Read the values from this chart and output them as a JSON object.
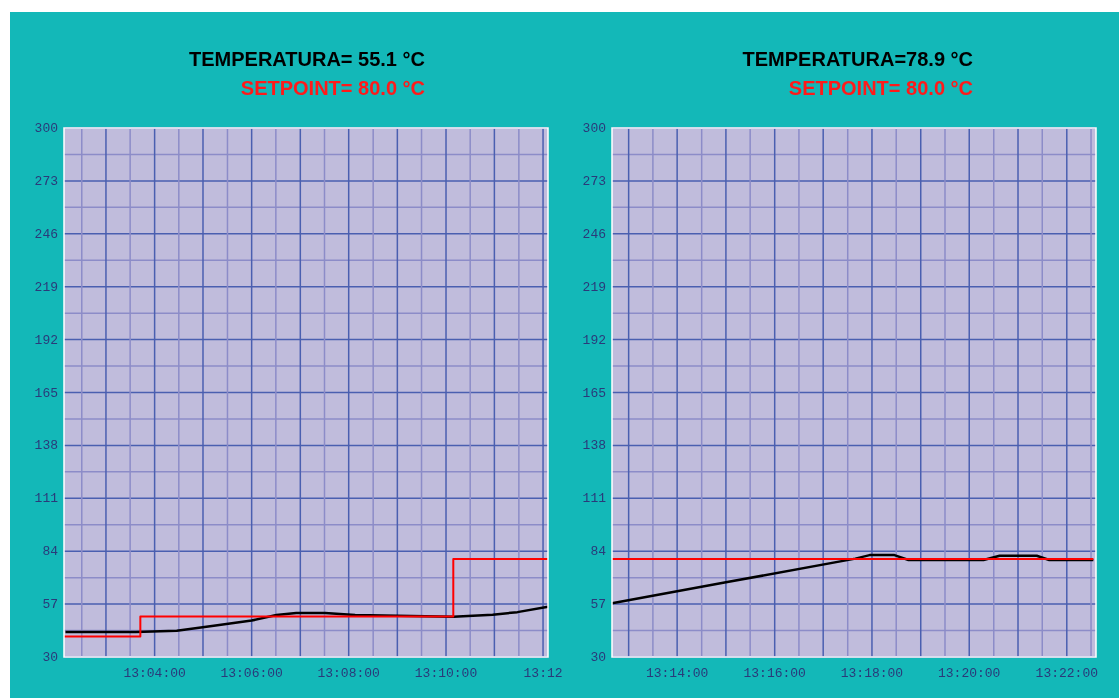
{
  "chart_data": [
    {
      "type": "line",
      "title": "TEMPERATURA= 55.1  °C",
      "subtitle": "SETPOINT= 80.0  °C",
      "xlim": [
        13.0356,
        13.2017
      ],
      "xticks": [
        {
          "value": 13.0417,
          "label": null
        },
        {
          "value": 13.05,
          "label": null
        },
        {
          "value": 13.0583,
          "label": null
        },
        {
          "value": 13.0667,
          "label": "13:04:00"
        },
        {
          "value": 13.075,
          "label": null
        },
        {
          "value": 13.0833,
          "label": null
        },
        {
          "value": 13.0917,
          "label": null
        },
        {
          "value": 13.1,
          "label": "13:06:00"
        },
        {
          "value": 13.1083,
          "label": null
        },
        {
          "value": 13.1167,
          "label": null
        },
        {
          "value": 13.125,
          "label": null
        },
        {
          "value": 13.1333,
          "label": "13:08:00"
        },
        {
          "value": 13.1417,
          "label": null
        },
        {
          "value": 13.15,
          "label": null
        },
        {
          "value": 13.1583,
          "label": null
        },
        {
          "value": 13.1667,
          "label": "13:10:00"
        },
        {
          "value": 13.175,
          "label": null
        },
        {
          "value": 13.1833,
          "label": null
        },
        {
          "value": 13.1917,
          "label": null
        },
        {
          "value": 13.2,
          "label": "13:12"
        }
      ],
      "ylim": [
        30,
        300
      ],
      "yticks": [
        30,
        {
          "value": 43.5,
          "label": null
        },
        57,
        {
          "value": 70.5,
          "label": null
        },
        84,
        {
          "value": 97.5,
          "label": null
        },
        111,
        {
          "value": 124.5,
          "label": null
        },
        138,
        {
          "value": 151.5,
          "label": null
        },
        165,
        {
          "value": 178.5,
          "label": null
        },
        192,
        {
          "value": 205.5,
          "label": null
        },
        219,
        {
          "value": 232.5,
          "label": null
        },
        246,
        {
          "value": 259.5,
          "label": null
        },
        273,
        {
          "value": 286.5,
          "label": null
        },
        300
      ],
      "grid": true,
      "series": [
        {
          "color": "#000000",
          "x": [
            13.0361,
            13.0602,
            13.0743,
            13.087,
            13.1,
            13.1085,
            13.1153,
            13.1252,
            13.1355,
            13.1692,
            13.1827,
            13.1912,
            13.2017
          ],
          "values": [
            42.8,
            42.8,
            43.4,
            46.0,
            48.6,
            51.4,
            52.5,
            52.5,
            51.4,
            50.5,
            51.6,
            52.9,
            55.7
          ]
        },
        {
          "type": "step",
          "color": "#ff0000",
          "x": [
            13.0356,
            13.0618,
            13.1692,
            13.2017
          ],
          "values": [
            40.4,
            50.7,
            80,
            80
          ]
        }
      ]
    },
    {
      "type": "line",
      "title": "TEMPERATURA=78.9   °C",
      "subtitle": "SETPOINT= 80.0  °C",
      "xlim": [
        13.211,
        13.3767
      ],
      "xticks": [
        {
          "value": 13.2167,
          "label": null
        },
        {
          "value": 13.225,
          "label": null
        },
        {
          "value": 13.2333,
          "label": "13:14:00"
        },
        {
          "value": 13.2417,
          "label": null
        },
        {
          "value": 13.25,
          "label": null
        },
        {
          "value": 13.2583,
          "label": null
        },
        {
          "value": 13.2667,
          "label": "13:16:00"
        },
        {
          "value": 13.275,
          "label": null
        },
        {
          "value": 13.2833,
          "label": null
        },
        {
          "value": 13.2917,
          "label": null
        },
        {
          "value": 13.3,
          "label": "13:18:00"
        },
        {
          "value": 13.3083,
          "label": null
        },
        {
          "value": 13.3167,
          "label": null
        },
        {
          "value": 13.325,
          "label": null
        },
        {
          "value": 13.3333,
          "label": "13:20:00"
        },
        {
          "value": 13.3417,
          "label": null
        },
        {
          "value": 13.35,
          "label": null
        },
        {
          "value": 13.3583,
          "label": null
        },
        {
          "value": 13.3667,
          "label": "13:22:00"
        },
        {
          "value": 13.375,
          "label": null
        }
      ],
      "ylim": [
        30,
        300
      ],
      "yticks": [
        30,
        {
          "value": 43.5,
          "label": null
        },
        57,
        {
          "value": 70.5,
          "label": null
        },
        84,
        {
          "value": 97.5,
          "label": null
        },
        111,
        {
          "value": 124.5,
          "label": null
        },
        138,
        {
          "value": 151.5,
          "label": null
        },
        165,
        {
          "value": 178.5,
          "label": null
        },
        192,
        {
          "value": 205.5,
          "label": null
        },
        219,
        {
          "value": 232.5,
          "label": null
        },
        246,
        {
          "value": 259.5,
          "label": null
        },
        273,
        {
          "value": 286.5,
          "label": null
        },
        300
      ],
      "grid": true,
      "series": [
        {
          "color": "#000000",
          "x": [
            13.211,
            13.25,
            13.2943,
            13.2992,
            13.3077,
            13.3125,
            13.3382,
            13.3437,
            13.3564,
            13.3607,
            13.3758
          ],
          "values": [
            57.4,
            68.1,
            80.2,
            82.0,
            82.0,
            79.5,
            79.5,
            81.7,
            81.7,
            79.5,
            79.5
          ]
        },
        {
          "type": "step",
          "color": "#ff0000",
          "x": [
            13.211,
            13.3758
          ],
          "values": [
            80,
            80
          ]
        }
      ]
    }
  ]
}
